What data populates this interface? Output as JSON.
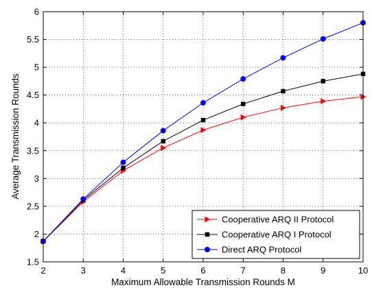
{
  "chart_data": {
    "type": "line",
    "title": "",
    "xlabel": "Maximum Allowable Transmission Rounds M",
    "ylabel": "Average Transmission Rounds",
    "xlim": [
      2,
      10
    ],
    "ylim": [
      1.5,
      6
    ],
    "x_ticks": [
      "2",
      "3",
      "4",
      "5",
      "6",
      "7",
      "8",
      "9",
      "10"
    ],
    "y_ticks": [
      "1.5",
      "2",
      "2.5",
      "3",
      "3.5",
      "4",
      "4.5",
      "5",
      "5.5",
      "6"
    ],
    "grid": true,
    "legend_position": "bottom-right",
    "x": [
      2,
      3,
      4,
      5,
      6,
      7,
      8,
      9,
      10
    ],
    "series": [
      {
        "name": "Cooperative ARQ II Protocol",
        "color": "#ff0000",
        "marker": "triangle-right",
        "values": [
          1.87,
          2.58,
          3.14,
          3.55,
          3.87,
          4.1,
          4.27,
          4.39,
          4.47
        ]
      },
      {
        "name": "Cooperative ARQ I Protocol",
        "color": "#000000",
        "marker": "square",
        "values": [
          1.87,
          2.61,
          3.19,
          3.67,
          4.05,
          4.34,
          4.57,
          4.75,
          4.88
        ]
      },
      {
        "name": "Direct ARQ Protocol",
        "color": "#0000ff",
        "marker": "circle",
        "values": [
          1.87,
          2.63,
          3.29,
          3.86,
          4.36,
          4.79,
          5.17,
          5.51,
          5.8
        ]
      }
    ]
  }
}
